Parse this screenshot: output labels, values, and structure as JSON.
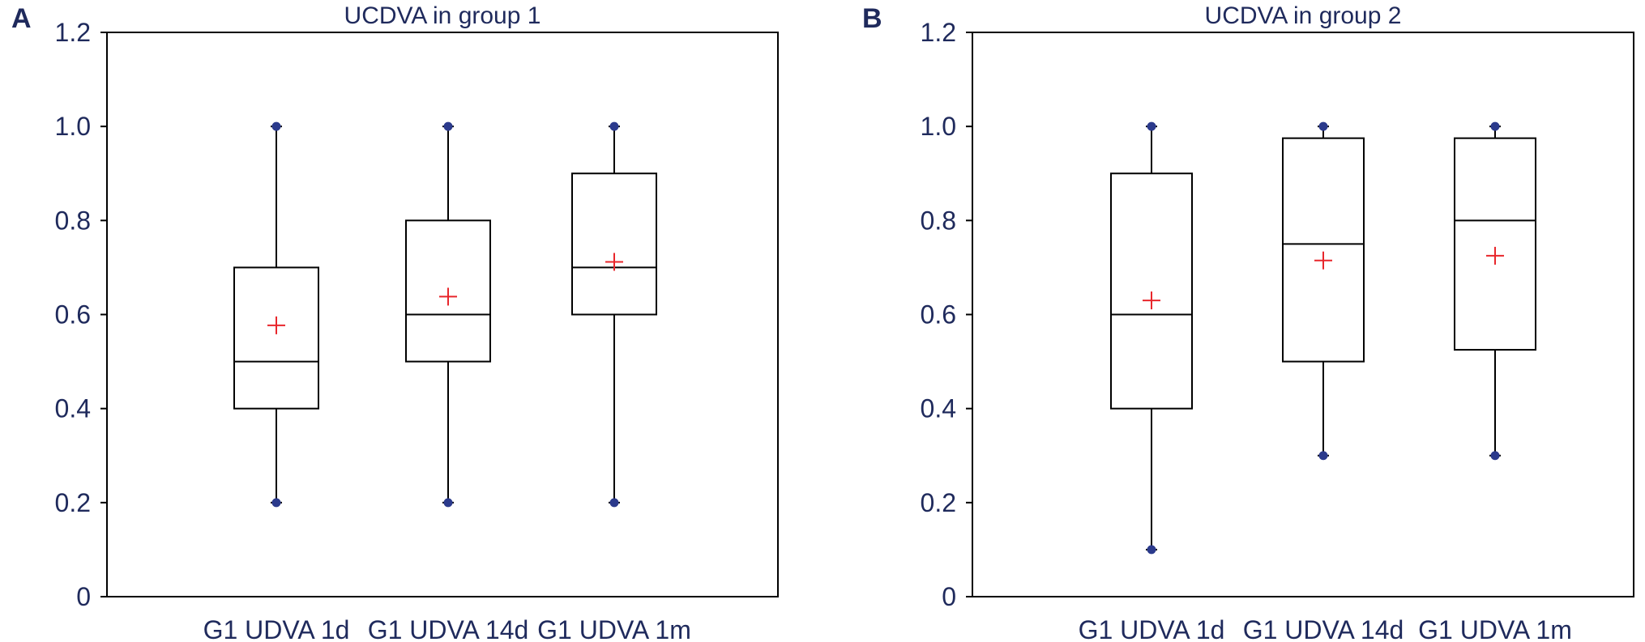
{
  "colors": {
    "text": "#1f2a5c",
    "mean_marker": "#e8262b",
    "extreme_point": "#2b3a8c",
    "box_stroke": "#000000"
  },
  "chart_data": [
    {
      "type": "box",
      "panel_label": "A",
      "title": "UCDVA in group 1",
      "ylim": [
        0,
        1.2
      ],
      "yticks": [
        "0",
        "0.2",
        "0.4",
        "0.6",
        "0.8",
        "1.0",
        "1.2"
      ],
      "ytick_values": [
        0,
        0.2,
        0.4,
        0.6,
        0.8,
        1.0,
        1.2
      ],
      "categories": [
        "G1 UDVA 1d",
        "G1 UDVA 14d",
        "G1 UDVA 1m"
      ],
      "boxes": [
        {
          "min": 0.2,
          "q1": 0.4,
          "median": 0.5,
          "q3": 0.7,
          "max": 1.0,
          "mean": 0.577
        },
        {
          "min": 0.2,
          "q1": 0.5,
          "median": 0.6,
          "q3": 0.8,
          "max": 1.0,
          "mean": 0.638
        },
        {
          "min": 0.2,
          "q1": 0.6,
          "median": 0.7,
          "q3": 0.9,
          "max": 1.0,
          "mean": 0.712
        }
      ],
      "grid": false,
      "frame": true
    },
    {
      "type": "box",
      "panel_label": "B",
      "title": "UCDVA in group 2",
      "ylim": [
        0,
        1.2
      ],
      "yticks": [
        "0",
        "0.2",
        "0.4",
        "0.6",
        "0.8",
        "1.0",
        "1.2"
      ],
      "ytick_values": [
        0,
        0.2,
        0.4,
        0.6,
        0.8,
        1.0,
        1.2
      ],
      "categories": [
        "G1 UDVA 1d",
        "G1 UDVA 14d",
        "G1 UDVA 1m"
      ],
      "boxes": [
        {
          "min": 0.1,
          "q1": 0.4,
          "median": 0.6,
          "q3": 0.9,
          "max": 1.0,
          "mean": 0.63
        },
        {
          "min": 0.3,
          "q1": 0.5,
          "median": 0.75,
          "q3": 0.975,
          "max": 1.0,
          "mean": 0.715
        },
        {
          "min": 0.3,
          "q1": 0.525,
          "median": 0.8,
          "q3": 0.975,
          "max": 1.0,
          "mean": 0.725
        }
      ],
      "grid": false,
      "frame": true
    }
  ]
}
